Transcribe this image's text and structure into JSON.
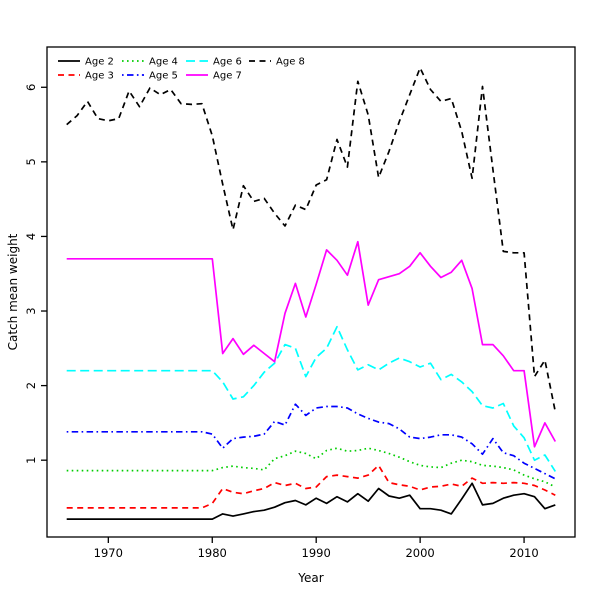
{
  "chart_data": {
    "type": "line",
    "title": "",
    "xlabel": "Year",
    "ylabel": "Catch mean weight",
    "x_ticks": [
      1970,
      1980,
      1990,
      2000,
      2010
    ],
    "y_ticks": [
      1,
      2,
      3,
      4,
      5,
      6
    ],
    "xlim": [
      1964.1,
      2014.9
    ],
    "ylim": [
      -0.03,
      6.54
    ],
    "grid": false,
    "legend_position": "top-left",
    "frame": true,
    "x": [
      1966,
      1967,
      1968,
      1969,
      1970,
      1971,
      1972,
      1973,
      1974,
      1975,
      1976,
      1977,
      1978,
      1979,
      1980,
      1981,
      1982,
      1983,
      1984,
      1985,
      1986,
      1987,
      1988,
      1989,
      1990,
      1991,
      1992,
      1993,
      1994,
      1995,
      1996,
      1997,
      1998,
      1999,
      2000,
      2001,
      2002,
      2003,
      2004,
      2005,
      2006,
      2007,
      2008,
      2009,
      2010,
      2011,
      2012,
      2013
    ],
    "series": [
      {
        "name": "Age 2",
        "color": "#000000",
        "dash": "solid",
        "values": [
          0.21,
          0.21,
          0.21,
          0.21,
          0.21,
          0.21,
          0.21,
          0.21,
          0.21,
          0.21,
          0.21,
          0.21,
          0.21,
          0.21,
          0.21,
          0.28,
          0.25,
          0.28,
          0.31,
          0.33,
          0.37,
          0.43,
          0.46,
          0.4,
          0.49,
          0.42,
          0.51,
          0.44,
          0.55,
          0.45,
          0.62,
          0.52,
          0.49,
          0.53,
          0.35,
          0.35,
          0.33,
          0.28,
          0.48,
          0.69,
          0.4,
          0.42,
          0.49,
          0.53,
          0.55,
          0.51,
          0.35,
          0.4
        ]
      },
      {
        "name": "Age 3",
        "color": "#ff0000",
        "dash": "dashed",
        "values": [
          0.36,
          0.36,
          0.36,
          0.36,
          0.36,
          0.36,
          0.36,
          0.36,
          0.36,
          0.36,
          0.36,
          0.36,
          0.36,
          0.36,
          0.42,
          0.62,
          0.57,
          0.55,
          0.59,
          0.62,
          0.7,
          0.66,
          0.69,
          0.62,
          0.64,
          0.78,
          0.8,
          0.78,
          0.76,
          0.8,
          0.93,
          0.7,
          0.67,
          0.65,
          0.6,
          0.64,
          0.65,
          0.68,
          0.65,
          0.76,
          0.69,
          0.7,
          0.69,
          0.7,
          0.69,
          0.66,
          0.6,
          0.53
        ]
      },
      {
        "name": "Age 4",
        "color": "#00cd00",
        "dash": "dotted",
        "values": [
          0.86,
          0.86,
          0.86,
          0.86,
          0.86,
          0.86,
          0.86,
          0.86,
          0.86,
          0.86,
          0.86,
          0.86,
          0.86,
          0.86,
          0.86,
          0.9,
          0.92,
          0.9,
          0.89,
          0.87,
          1.02,
          1.06,
          1.12,
          1.09,
          1.02,
          1.13,
          1.16,
          1.12,
          1.13,
          1.16,
          1.13,
          1.09,
          1.04,
          0.98,
          0.93,
          0.91,
          0.9,
          0.96,
          1.0,
          0.98,
          0.93,
          0.92,
          0.9,
          0.87,
          0.8,
          0.75,
          0.71,
          0.64
        ]
      },
      {
        "name": "Age 5",
        "color": "#0000ff",
        "dash": "dashdot",
        "values": [
          1.38,
          1.38,
          1.38,
          1.38,
          1.38,
          1.38,
          1.38,
          1.38,
          1.38,
          1.38,
          1.38,
          1.38,
          1.38,
          1.38,
          1.35,
          1.16,
          1.29,
          1.31,
          1.32,
          1.35,
          1.52,
          1.47,
          1.75,
          1.6,
          1.7,
          1.72,
          1.72,
          1.7,
          1.62,
          1.56,
          1.51,
          1.49,
          1.42,
          1.31,
          1.29,
          1.31,
          1.34,
          1.34,
          1.31,
          1.22,
          1.08,
          1.29,
          1.1,
          1.06,
          0.96,
          0.89,
          0.82,
          0.75
        ]
      },
      {
        "name": "Age 6",
        "color": "#00ffff",
        "dash": "longdash",
        "values": [
          2.2,
          2.2,
          2.2,
          2.2,
          2.2,
          2.2,
          2.2,
          2.2,
          2.2,
          2.2,
          2.2,
          2.2,
          2.2,
          2.2,
          2.2,
          2.05,
          1.82,
          1.85,
          2.0,
          2.18,
          2.3,
          2.55,
          2.5,
          2.12,
          2.38,
          2.5,
          2.79,
          2.48,
          2.21,
          2.28,
          2.21,
          2.3,
          2.37,
          2.32,
          2.25,
          2.3,
          2.08,
          2.15,
          2.05,
          1.92,
          1.73,
          1.7,
          1.76,
          1.46,
          1.3,
          1.0,
          1.07,
          0.85
        ]
      },
      {
        "name": "Age 7",
        "color": "#ff00ff",
        "dash": "solid",
        "values": [
          3.7,
          3.7,
          3.7,
          3.7,
          3.7,
          3.7,
          3.7,
          3.7,
          3.7,
          3.7,
          3.7,
          3.7,
          3.7,
          3.7,
          3.7,
          2.43,
          2.63,
          2.42,
          2.54,
          2.43,
          2.32,
          2.97,
          3.37,
          2.92,
          3.36,
          3.82,
          3.68,
          3.48,
          3.93,
          3.08,
          3.42,
          3.46,
          3.5,
          3.6,
          3.78,
          3.6,
          3.45,
          3.52,
          3.68,
          3.3,
          2.55,
          2.55,
          2.4,
          2.2,
          2.2,
          1.18,
          1.5,
          1.25
        ]
      },
      {
        "name": "Age 8",
        "color": "#000000",
        "dash": "dashed",
        "values": [
          5.5,
          5.62,
          5.81,
          5.58,
          5.55,
          5.58,
          5.95,
          5.74,
          5.99,
          5.9,
          5.97,
          5.78,
          5.77,
          5.78,
          5.35,
          4.7,
          4.09,
          4.68,
          4.47,
          4.51,
          4.31,
          4.14,
          4.42,
          4.36,
          4.69,
          4.76,
          5.3,
          4.93,
          6.08,
          5.63,
          4.79,
          5.14,
          5.54,
          5.9,
          6.26,
          5.97,
          5.81,
          5.85,
          5.41,
          4.78,
          6.01,
          4.9,
          3.8,
          3.78,
          3.78,
          2.12,
          2.34,
          1.65
        ]
      }
    ],
    "legend_rows": [
      [
        "Age 2",
        "Age 4",
        "Age 6",
        "Age 8"
      ],
      [
        "Age 3",
        "Age 5",
        "Age 7"
      ]
    ]
  }
}
